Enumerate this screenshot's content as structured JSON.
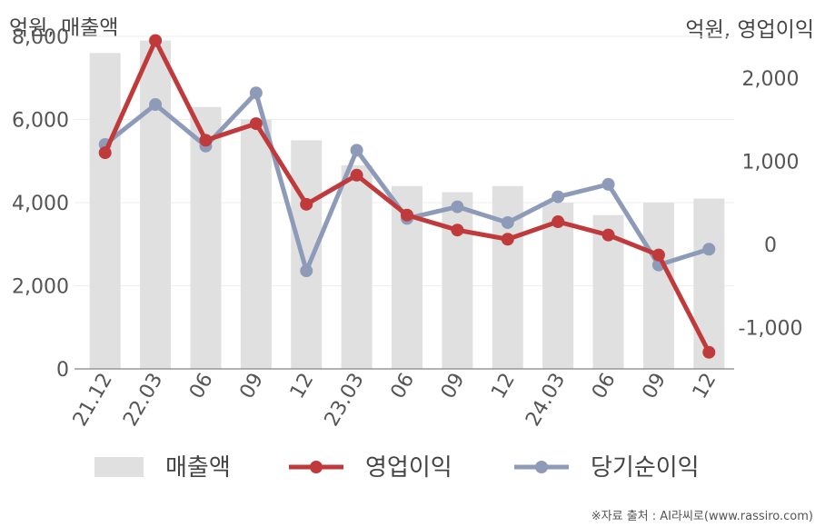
{
  "chart_data": {
    "type": "bar+line",
    "left_unit_label": "억원, 매출액",
    "right_unit_label": "억원, 영업이익",
    "categories": [
      "21.12",
      "22.03",
      "06",
      "09",
      "12",
      "23.03",
      "06",
      "09",
      "12",
      "24.03",
      "06",
      "09",
      "12"
    ],
    "left_axis": {
      "ticks": [
        0,
        2000,
        4000,
        6000,
        8000
      ],
      "tick_labels": [
        "0",
        "2,000",
        "4,000",
        "6,000",
        "8,000"
      ],
      "ylim": [
        0,
        8000
      ]
    },
    "right_axis": {
      "ticks": [
        -1000,
        0,
        1000,
        2000
      ],
      "tick_labels": [
        "-1,000",
        "0",
        "1,000",
        "2,000"
      ],
      "ylim": [
        -1500,
        2500
      ]
    },
    "series": [
      {
        "name": "매출액",
        "kind": "bar",
        "axis": "left",
        "color": "#e0e0e0",
        "values": [
          7600,
          7900,
          6300,
          6000,
          5500,
          4900,
          4400,
          4250,
          4400,
          4000,
          3700,
          4000,
          4100
        ]
      },
      {
        "name": "영업이익",
        "kind": "line",
        "axis": "right",
        "color": "#c0393b",
        "values": [
          1100,
          2450,
          1250,
          1450,
          480,
          830,
          350,
          170,
          60,
          270,
          110,
          -130,
          -1300
        ]
      },
      {
        "name": "당기순이익",
        "kind": "line",
        "axis": "right",
        "color": "#8e9bb8",
        "values": [
          1200,
          1680,
          1180,
          1820,
          -320,
          1130,
          310,
          450,
          260,
          570,
          720,
          -250,
          -60
        ]
      }
    ],
    "grid": true,
    "legend_position": "bottom"
  },
  "source_note": "※자료 출처 : AI라씨로(www.rassiro.com)"
}
